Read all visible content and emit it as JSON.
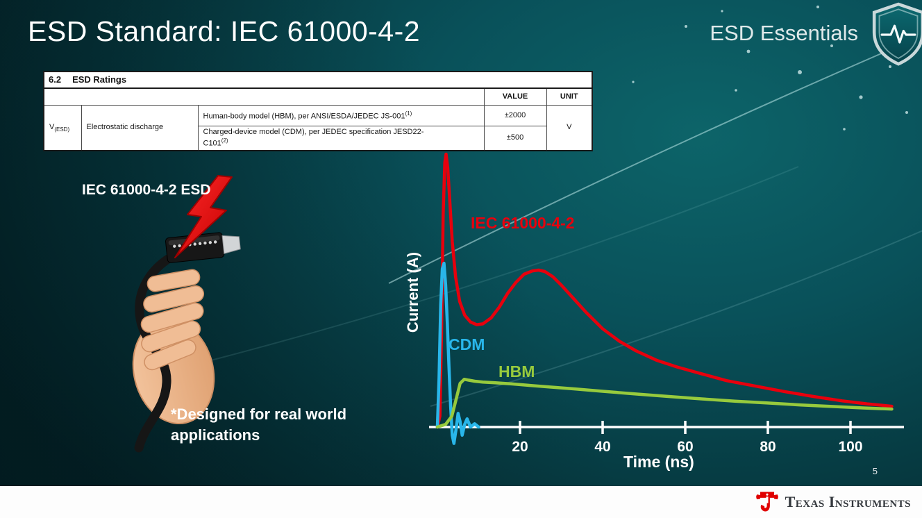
{
  "slide": {
    "title": "ESD Standard: IEC 61000-4-2",
    "series_brand": "ESD Essentials",
    "page_number": "5",
    "footer_brand": "Texas Instruments"
  },
  "table": {
    "section_number": "6.2",
    "section_title": "ESD Ratings",
    "headers": {
      "value": "VALUE",
      "unit": "UNIT"
    },
    "symbol": {
      "base": "V",
      "sub": "(ESD)"
    },
    "parameter": "Electrostatic discharge",
    "rows": [
      {
        "description": "Human-body model (HBM), per ANSI/ESDA/JEDEC JS-001",
        "footnote_ref": "(1)",
        "value": "±2000"
      },
      {
        "description_l1": "Charged-device model (CDM), per JEDEC specification JESD22-",
        "description_l2": "C101",
        "footnote_ref": "(2)",
        "value": "±500"
      }
    ],
    "unit": "V"
  },
  "illustration": {
    "label": "IEC 61000-4-2 ESD",
    "footnote": "*Designed for real world applications"
  },
  "chart_data": {
    "type": "line",
    "title": "",
    "xlabel": "Time (ns)",
    "ylabel": "Current (A)",
    "x_ticks": [
      20,
      40,
      60,
      80,
      100
    ],
    "xlim": [
      0,
      112
    ],
    "y_axis_numeric_labels": false,
    "y_units": "relative amplitude (IEC 61000-4-2 peak = 1.0)",
    "legend_position": "inline-labels",
    "grid": false,
    "series": [
      {
        "name": "IEC 61000-4-2",
        "color": "#e8000d",
        "x": [
          0,
          0.6,
          1,
          1.4,
          1.8,
          2.1,
          2.5,
          3,
          3.6,
          4.4,
          5.4,
          6.6,
          8,
          9.5,
          11,
          13,
          15,
          17,
          19,
          21,
          23,
          24.5,
          26,
          28,
          30,
          33,
          36,
          40,
          44,
          48,
          53,
          58,
          64,
          70,
          77,
          84,
          91,
          98,
          104,
          110
        ],
        "y": [
          0,
          0.04,
          0.35,
          0.78,
          0.97,
          1,
          0.95,
          0.83,
          0.68,
          0.55,
          0.46,
          0.41,
          0.385,
          0.375,
          0.378,
          0.4,
          0.44,
          0.49,
          0.53,
          0.56,
          0.572,
          0.575,
          0.57,
          0.55,
          0.52,
          0.47,
          0.42,
          0.36,
          0.315,
          0.28,
          0.245,
          0.22,
          0.195,
          0.17,
          0.15,
          0.13,
          0.112,
          0.096,
          0.085,
          0.076
        ]
      },
      {
        "name": "CDM",
        "color": "#29b6ea",
        "x": [
          0,
          0.4,
          0.8,
          1.2,
          1.6,
          2,
          2.4,
          2.8,
          3.2,
          3.6,
          4,
          4.5,
          5,
          5.5,
          6,
          6.6,
          7.2,
          8,
          9,
          10
        ],
        "y": [
          0,
          0.18,
          0.45,
          0.58,
          0.6,
          0.52,
          0.38,
          0.22,
          0.08,
          -0.03,
          -0.06,
          -0.01,
          0.05,
          0.02,
          -0.03,
          0.01,
          0.03,
          0,
          0.012,
          0
        ]
      },
      {
        "name": "HBM",
        "color": "#97ca3d",
        "x": [
          0,
          2,
          3.5,
          4.5,
          5.5,
          6.5,
          7.5,
          9,
          11,
          14,
          18,
          22,
          27,
          33,
          40,
          48,
          56,
          64,
          72,
          80,
          88,
          96,
          103,
          110
        ],
        "y": [
          0,
          0.01,
          0.04,
          0.1,
          0.16,
          0.175,
          0.172,
          0.168,
          0.165,
          0.162,
          0.158,
          0.153,
          0.147,
          0.14,
          0.131,
          0.121,
          0.112,
          0.103,
          0.095,
          0.088,
          0.081,
          0.075,
          0.07,
          0.066
        ]
      }
    ]
  },
  "colors": {
    "background_dark": "#032429",
    "background_light": "#0d6469",
    "accent_red": "#e8000d",
    "accent_cyan": "#29b6ea",
    "accent_green": "#97ca3d",
    "ti_red": "#e00000"
  }
}
